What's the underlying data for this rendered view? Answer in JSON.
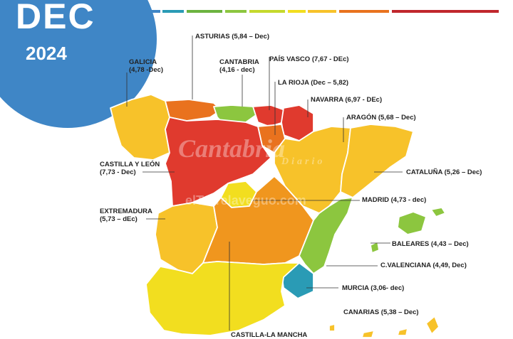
{
  "header": {
    "month": "DEC",
    "year": "2024"
  },
  "colors": {
    "badge": "#3f86c6",
    "red": "#e03a2e",
    "dark_orange": "#e9721e",
    "orange": "#f0961e",
    "yellow_orange": "#f7c22a",
    "yellow": "#f2de1f",
    "light_green": "#8cc63f",
    "green": "#6cb33f",
    "blue": "#2a9bb5"
  },
  "regions": [
    {
      "id": "galicia",
      "label_line1": "GALICIA",
      "label_line2": "(4,78 -Dec)",
      "value": 4.78
    },
    {
      "id": "asturias",
      "label_line1": "ASTURIAS (5,84 – Dec)",
      "label_line2": "",
      "value": 5.84
    },
    {
      "id": "cantabria",
      "label_line1": "CANTABRIA",
      "label_line2": "(4,16 - dec)",
      "value": 4.16
    },
    {
      "id": "pais_vasco",
      "label_line1": "PAÍS VASCO (7,67 - DEc)",
      "label_line2": "",
      "value": 7.67
    },
    {
      "id": "la_rioja",
      "label_line1": "LA RIOJA (Dec – 5,82)",
      "label_line2": "",
      "value": 5.82
    },
    {
      "id": "navarra",
      "label_line1": "NAVARRA (6,97 - DEc)",
      "label_line2": "",
      "value": 6.97
    },
    {
      "id": "aragon",
      "label_line1": "ARAGÓN (5,68 – Dec)",
      "label_line2": "",
      "value": 5.68
    },
    {
      "id": "castilla_leon",
      "label_line1": "CASTILLA Y LEÓN",
      "label_line2": "(7,73 - Dec)",
      "value": 7.73
    },
    {
      "id": "cataluna",
      "label_line1": "CATALUÑA (5,26 – Dec)",
      "label_line2": "",
      "value": 5.26
    },
    {
      "id": "madrid",
      "label_line1": "MADRID (4,73 - dec)",
      "label_line2": "",
      "value": 4.73
    },
    {
      "id": "extremadura",
      "label_line1": "EXTREMADURA",
      "label_line2": "(5,73 – dEc)",
      "value": 5.73
    },
    {
      "id": "baleares",
      "label_line1": "BALEARES (4,43 – Dec)",
      "label_line2": "",
      "value": 4.43
    },
    {
      "id": "c_valenciana",
      "label_line1": "C.VALENCIANA (4,49, Dec)",
      "label_line2": "",
      "value": 4.49
    },
    {
      "id": "murcia",
      "label_line1": "MURCIA (3,06- dec)",
      "label_line2": "",
      "value": 3.06
    },
    {
      "id": "canarias",
      "label_line1": "CANARIAS (5,38 – Dec)",
      "label_line2": "",
      "value": 5.38
    },
    {
      "id": "castilla_la_mancha",
      "label_line1": "CASTILLA-LA MANCHA",
      "label_line2": "",
      "value": null
    }
  ],
  "watermarks": {
    "main": "Cantabria",
    "sub": "Diario",
    "site": "elTorrelaveguo.com"
  }
}
